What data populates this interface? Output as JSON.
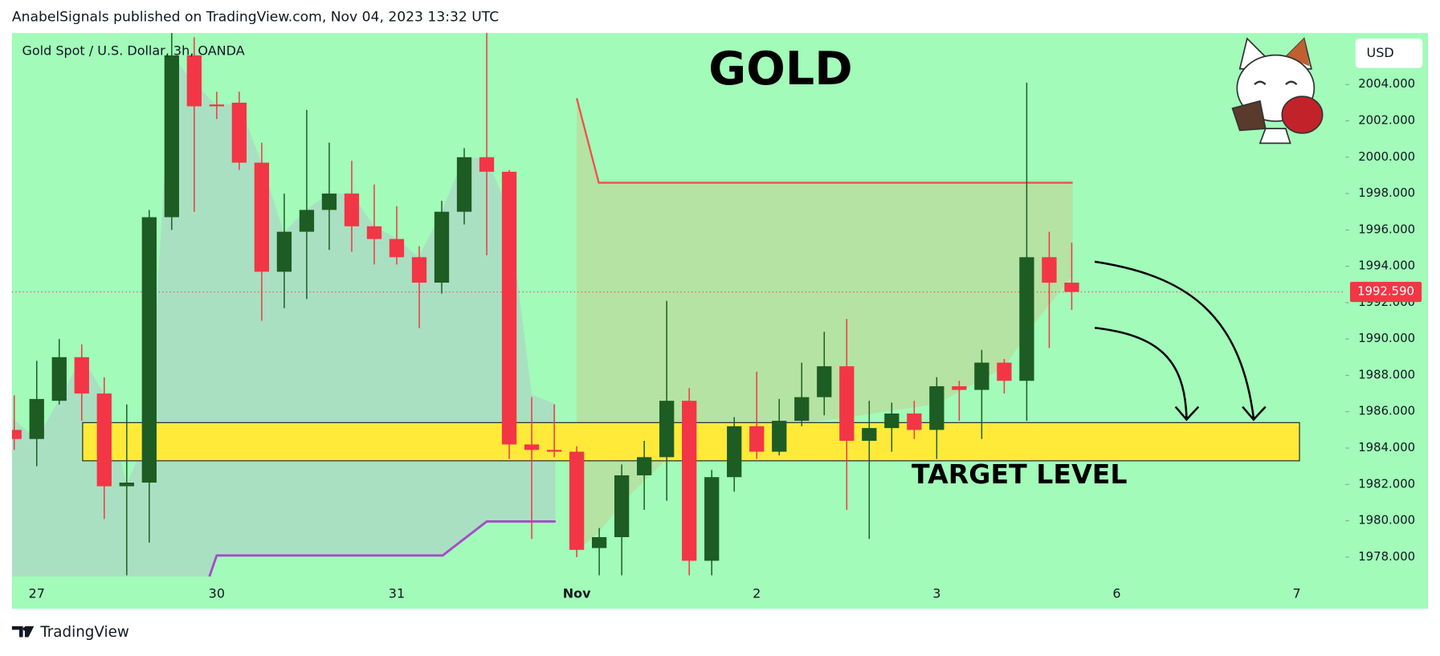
{
  "header": "AnabelSignals published on TradingView.com, Nov 04, 2023 13:32 UTC",
  "footer": "TradingView",
  "chart_data": {
    "type": "candlestick",
    "title": "GOLD",
    "subtitle": "Gold Spot / U.S. Dollar, 3h, OANDA",
    "currency": "USD",
    "annotation": "TARGET LEVEL",
    "target_zone": [
      1983.3,
      1985.4
    ],
    "last_price": {
      "value": 1992.59,
      "label": "1992.590"
    },
    "up_color": "#1d5c22",
    "down_color": "#f23645",
    "categories": [
      null,
      "27",
      null,
      null,
      null,
      null,
      null,
      null,
      null,
      "30",
      null,
      null,
      null,
      null,
      null,
      null,
      null,
      "31",
      null,
      null,
      null,
      null,
      null,
      null,
      null,
      "Nov",
      null,
      null,
      null,
      null,
      null,
      null,
      null,
      "2",
      null,
      null,
      null,
      null,
      null,
      null,
      null,
      "3",
      null,
      null,
      null,
      null,
      null,
      null,
      null,
      "6",
      null,
      null,
      null,
      null,
      null,
      null,
      null,
      "7",
      null,
      null
    ],
    "open": [
      1985.0,
      1984.5,
      1986.6,
      1989.0,
      1987.0,
      1981.9,
      1982.1,
      1996.7,
      2005.6,
      2002.9,
      2003.0,
      1999.7,
      1993.7,
      1995.9,
      1997.1,
      1998.0,
      1996.2,
      1995.5,
      1994.5,
      1993.1,
      1997.0,
      2000.0,
      1999.2,
      1984.2,
      1983.9,
      1983.8,
      1978.5,
      1979.1,
      1982.5,
      1983.5,
      1986.6,
      1977.8,
      1982.4,
      1985.2,
      1983.8,
      1985.5,
      1986.8,
      1988.5,
      1984.4,
      1985.1,
      1985.9,
      1985.0,
      1987.4,
      1987.2,
      1988.7,
      1987.7,
      1994.5,
      1993.1,
      null,
      null,
      null,
      null,
      null,
      null,
      null,
      null,
      null,
      null,
      null,
      null
    ],
    "high": [
      1986.9,
      1988.8,
      1990.0,
      1989.7,
      1987.9,
      1986.4,
      1997.1,
      2006.9,
      2006.6,
      2003.6,
      2003.6,
      2000.8,
      1998.0,
      2002.6,
      2000.8,
      1999.8,
      1998.5,
      1997.3,
      1995.1,
      1997.6,
      2000.5,
      2006.9,
      1999.3,
      1986.8,
      1986.4,
      1984.1,
      1979.6,
      1983.1,
      1984.4,
      1992.1,
      1987.3,
      1982.8,
      1985.7,
      1988.2,
      1986.7,
      1988.7,
      1990.4,
      1991.1,
      1986.6,
      1986.5,
      1986.6,
      1987.9,
      1987.7,
      1989.4,
      1988.9,
      2004.1,
      1995.9,
      1995.3,
      null,
      null,
      null,
      null,
      null,
      null,
      null,
      null,
      null,
      null,
      null,
      null
    ],
    "low": [
      1983.9,
      1983.0,
      1986.4,
      1985.5,
      1980.1,
      1977.0,
      1978.8,
      1996.0,
      1997.0,
      2002.1,
      1999.3,
      1991.0,
      1991.7,
      1992.2,
      1994.9,
      1994.8,
      1994.1,
      1994.1,
      1990.6,
      1992.5,
      1996.3,
      1994.6,
      1983.4,
      1979.0,
      1983.5,
      1978.0,
      1977.0,
      1977.0,
      1980.6,
      1981.1,
      1977.0,
      1977.0,
      1981.6,
      1983.4,
      1983.6,
      1985.2,
      1985.8,
      1980.6,
      1979.0,
      1983.8,
      1984.5,
      1983.4,
      1985.5,
      1984.5,
      1987.0,
      1985.5,
      1989.5,
      1991.6,
      null,
      null,
      null,
      null,
      null,
      null,
      null,
      null,
      null,
      null,
      null,
      null
    ],
    "close": [
      1984.5,
      1986.7,
      1989.0,
      1987.0,
      1981.9,
      1982.1,
      1996.7,
      2005.6,
      2002.8,
      2002.8,
      1999.7,
      1993.7,
      1995.9,
      1997.1,
      1998.0,
      1996.2,
      1995.5,
      1994.5,
      1993.1,
      1997.0,
      2000.0,
      1999.2,
      1984.2,
      1983.9,
      1983.8,
      1978.4,
      1979.1,
      1982.5,
      1983.5,
      1986.6,
      1977.8,
      1982.4,
      1985.2,
      1983.8,
      1985.5,
      1986.8,
      1988.5,
      1984.4,
      1985.1,
      1985.9,
      1985.0,
      1987.4,
      1987.2,
      1988.7,
      1987.7,
      1994.5,
      1993.1,
      1992.59,
      null,
      null,
      null,
      null,
      null,
      null,
      null,
      null,
      null,
      null,
      null,
      null
    ],
    "ylim": [
      1976.93,
      2006.83
    ],
    "yticks": [
      {
        "value": 1978,
        "label": "1978.000"
      },
      {
        "value": 1980,
        "label": "1980.000"
      },
      {
        "value": 1982,
        "label": "1982.000"
      },
      {
        "value": 1984,
        "label": "1984.000"
      },
      {
        "value": 1986,
        "label": "1986.000"
      },
      {
        "value": 1988,
        "label": "1988.000"
      },
      {
        "value": 1990,
        "label": "1990.000"
      },
      {
        "value": 1992,
        "label": "1992.000"
      },
      {
        "value": 1994,
        "label": "1994.000"
      },
      {
        "value": 1996,
        "label": "1996.000"
      },
      {
        "value": 1998,
        "label": "1998.000"
      },
      {
        "value": 2000,
        "label": "2000.000"
      },
      {
        "value": 2002,
        "label": "2002.000"
      },
      {
        "value": 2004,
        "label": "2004.000"
      }
    ]
  }
}
